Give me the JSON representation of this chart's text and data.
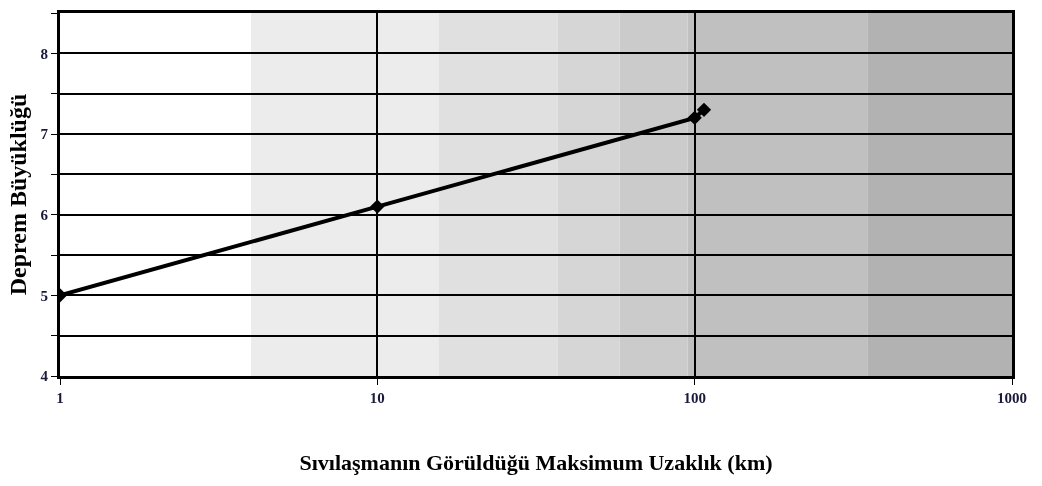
{
  "chart_data": {
    "type": "line",
    "xlabel": "Sıvılaşmanın Görüldüğü Maksimum Uzaklık (km)",
    "ylabel": "Deprem Büyüklüğü",
    "x": [
      1,
      10,
      100,
      107
    ],
    "series": [
      {
        "color": "#000000",
        "values": [
          5,
          6.1,
          7.2,
          7.3
        ]
      }
    ],
    "log": "x",
    "xlim": [
      1,
      1000
    ],
    "xticks": [
      1,
      10,
      100,
      1000
    ],
    "ylim": [
      4,
      8.5
    ],
    "yticks": [
      4,
      {
        "value": 4.5,
        "label": null
      },
      5,
      {
        "value": 5.5,
        "label": null
      },
      6,
      {
        "value": 6.5,
        "label": null
      },
      7,
      {
        "value": 7.5,
        "label": null
      },
      8,
      {
        "value": 8.5,
        "label": null
      }
    ],
    "grid": true,
    "marker": "diamond",
    "line_style": "solid",
    "bands": [
      {
        "axis": "x",
        "from": 4,
        "to": 15.6,
        "color": "#ececec"
      },
      {
        "axis": "x",
        "from": 15.6,
        "to": 37,
        "color": "#e0e0e0"
      },
      {
        "axis": "x",
        "from": 37,
        "to": 58,
        "color": "#d6d6d6"
      },
      {
        "axis": "x",
        "from": 58,
        "to": 95,
        "color": "#cbcbcb"
      },
      {
        "axis": "x",
        "from": 95,
        "to": 350,
        "color": "#c0c0c0"
      },
      {
        "axis": "x",
        "from": 350,
        "to": 1000,
        "color": "#b2b2b2"
      }
    ]
  }
}
